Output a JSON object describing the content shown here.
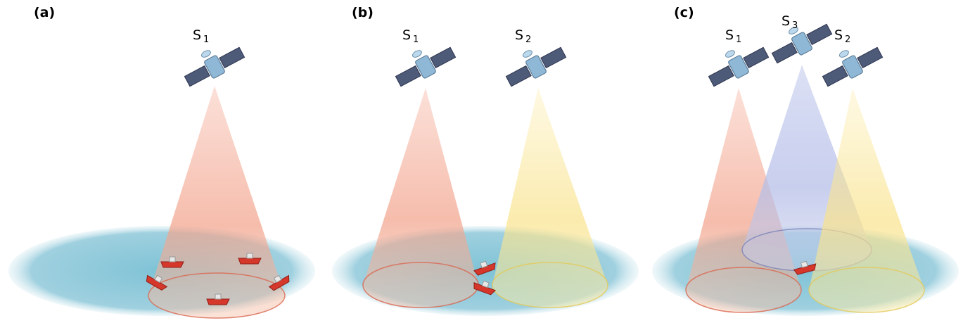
{
  "panels": [
    {
      "label": "(a)",
      "satellites": [
        {
          "base": "S",
          "sub": "1"
        }
      ]
    },
    {
      "label": "(b)",
      "satellites": [
        {
          "base": "S",
          "sub": "1"
        },
        {
          "base": "S",
          "sub": "2"
        }
      ]
    },
    {
      "label": "(c)",
      "satellites": [
        {
          "base": "S",
          "sub": "1"
        },
        {
          "base": "S",
          "sub": "3"
        },
        {
          "base": "S",
          "sub": "2"
        }
      ]
    }
  ]
}
